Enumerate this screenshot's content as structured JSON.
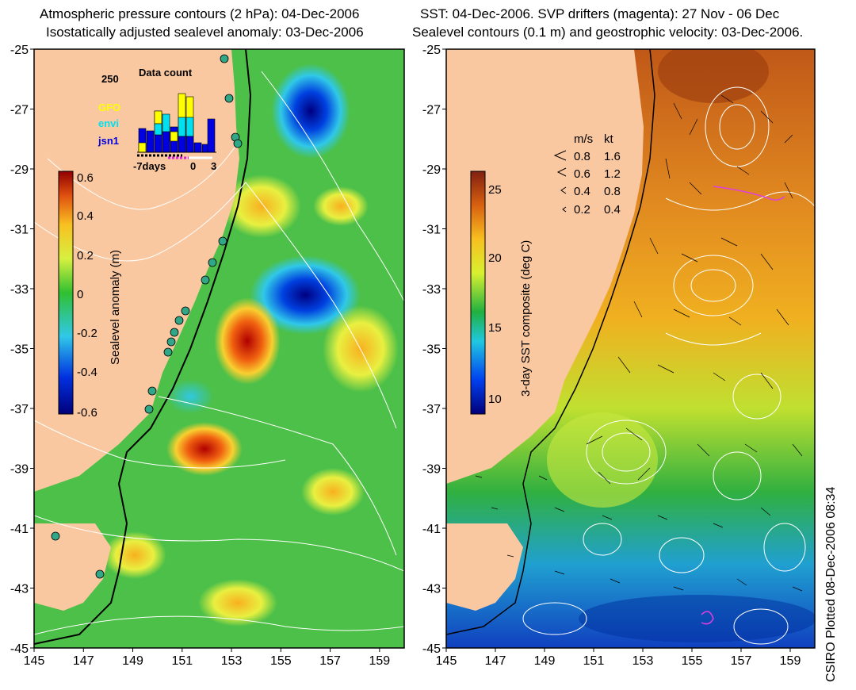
{
  "left_panel": {
    "title_line1": "Atmospheric pressure contours (2 hPa): 04-Dec-2006",
    "title_line2": "Isostatically adjusted sealevel anomaly: 03-Dec-2006",
    "colorbar_label": "Sealevel anomaly (m)",
    "colorbar_ticks": [
      "0.6",
      "0.4",
      "0.2",
      "0",
      "-0.2",
      "-0.4",
      "-0.6"
    ],
    "inset": {
      "title": "Data count",
      "ymax_label": "250",
      "legend": [
        {
          "name": "GFO",
          "color": "#ffff00"
        },
        {
          "name": "envi",
          "color": "#00e0f0"
        },
        {
          "name": "jsn1",
          "color": "#0000e0"
        }
      ],
      "x_labels": [
        "-7days",
        "0",
        "3"
      ]
    }
  },
  "right_panel": {
    "title_line1": "SST: 04-Dec-2006. SVP drifters (magenta): 27 Nov - 06 Dec",
    "title_line2": "Sealevel contours (0.1 m) and geostrophic velocity: 03-Dec-2006.",
    "colorbar_label": "3-day SST composite (deg C)",
    "colorbar_ticks": [
      "25",
      "20",
      "15",
      "10"
    ],
    "velocity_legend": {
      "header_ms": "m/s",
      "header_kt": "kt",
      "rows": [
        {
          "ms": "0.8",
          "kt": "1.6"
        },
        {
          "ms": "0.6",
          "kt": "1.2"
        },
        {
          "ms": "0.4",
          "kt": "0.8"
        },
        {
          "ms": "0.2",
          "kt": "0.4"
        }
      ]
    }
  },
  "axes": {
    "lat_labels": [
      "-25",
      "-27",
      "-29",
      "-31",
      "-33",
      "-35",
      "-37",
      "-39",
      "-41",
      "-43",
      "-45"
    ],
    "lon_labels": [
      "145",
      "147",
      "149",
      "151",
      "153",
      "155",
      "157",
      "159"
    ]
  },
  "credit": "CSIRO Plotted 08-Dec-2006 08:34",
  "colors": {
    "land": "#fac8a0",
    "ocean_base_left": "#4cc048",
    "ocean_base_right": "#e8a020"
  }
}
